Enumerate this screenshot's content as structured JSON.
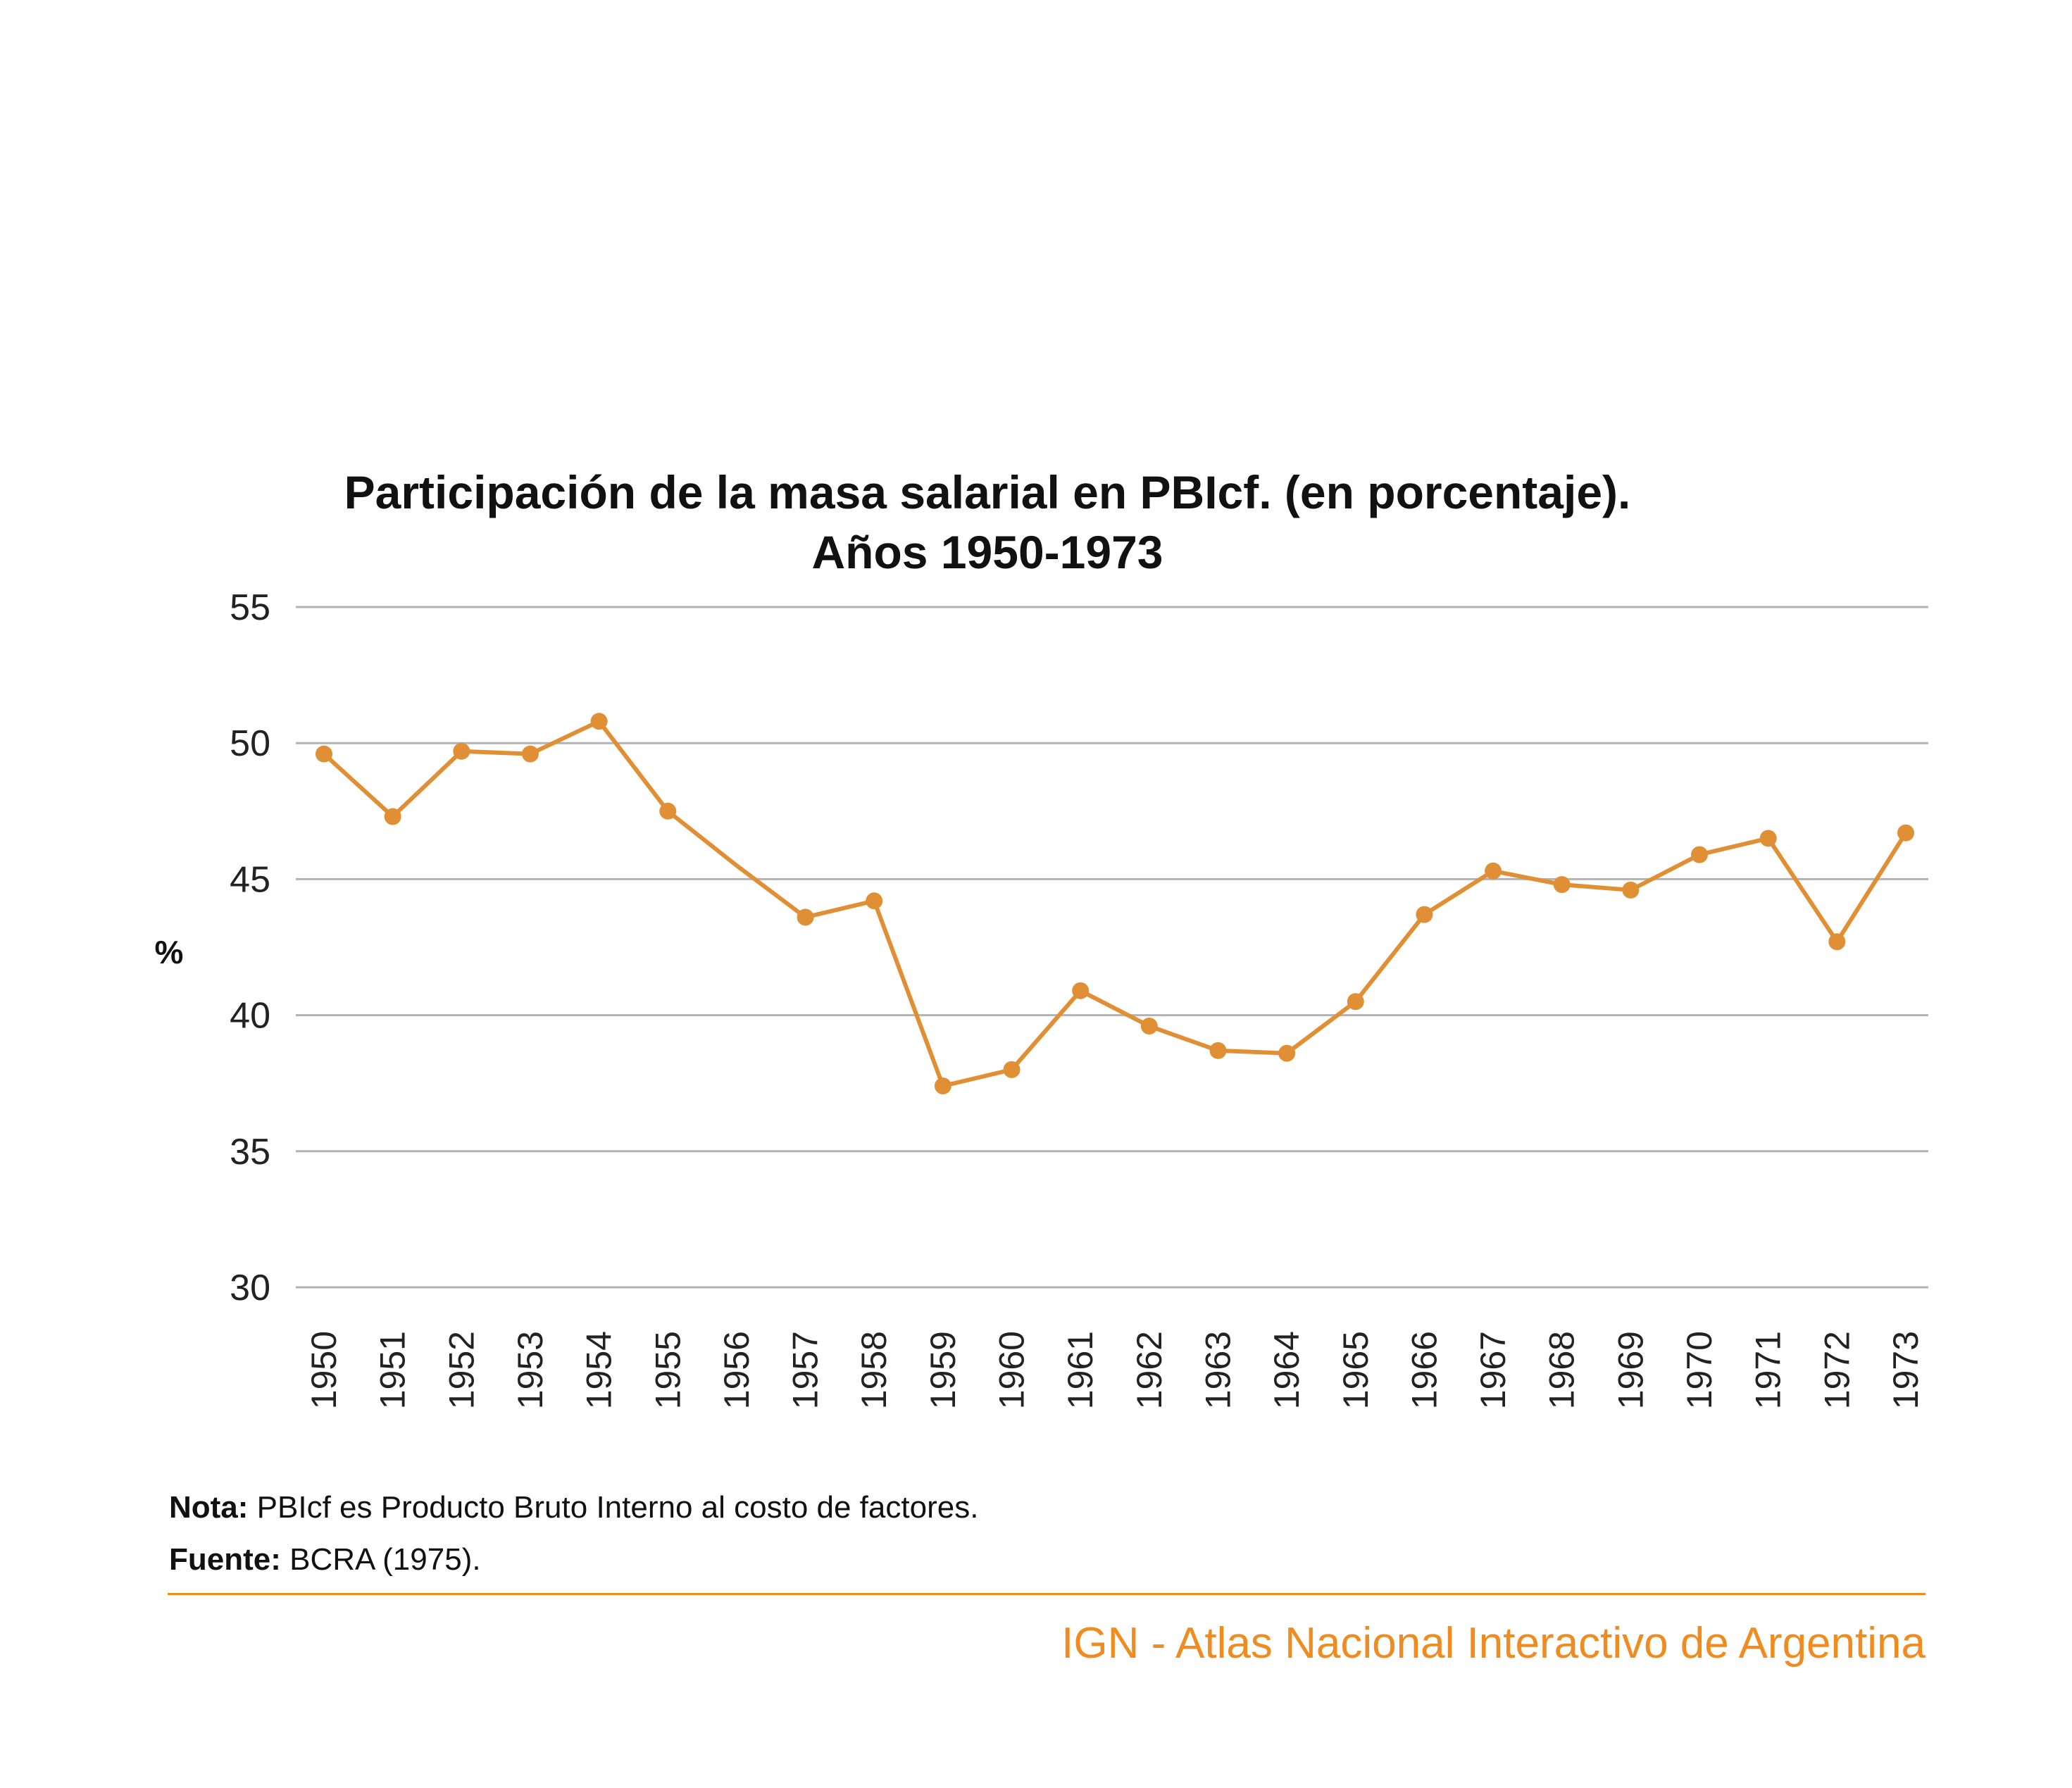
{
  "chart_data": {
    "type": "line",
    "title": "Participación de la masa salarial en PBIcf. (en porcentaje).",
    "subtitle": "Años 1950-1973",
    "xlabel": "",
    "ylabel": "%",
    "ylim": [
      30,
      55
    ],
    "yticks": [
      "30",
      "35",
      "40",
      "45",
      "50",
      "55"
    ],
    "grid": true,
    "categories": [
      "1950",
      "1951",
      "1952",
      "1953",
      "1954",
      "1955",
      "1956",
      "1957",
      "1958",
      "1959",
      "1960",
      "1961",
      "1962",
      "1963",
      "1964",
      "1965",
      "1966",
      "1967",
      "1968",
      "1969",
      "1970",
      "1971",
      "1972",
      "1973"
    ],
    "series": [
      {
        "values": [
          49.6,
          47.3,
          49.7,
          49.6,
          50.8,
          47.5,
          45.5,
          43.6,
          44.2,
          37.4,
          38.0,
          40.9,
          39.6,
          38.7,
          38.6,
          40.5,
          43.7,
          45.3,
          44.8,
          44.6,
          45.9,
          46.5,
          42.7,
          46.7
        ],
        "markers": [
          true,
          true,
          true,
          true,
          true,
          true,
          false,
          true,
          true,
          true,
          true,
          true,
          true,
          true,
          true,
          true,
          true,
          true,
          true,
          true,
          true,
          true,
          true,
          true
        ],
        "color": "#e08f34"
      }
    ]
  },
  "notes": {
    "nota_label": "Nota:",
    "nota_text": " PBIcf es Producto Bruto Interno al costo de factores.",
    "fuente_label": "Fuente:",
    "fuente_text": " BCRA (1975)."
  },
  "branding": {
    "text": "IGN - Atlas Nacional Interactivo de Argentina"
  },
  "colors": {
    "accent": "#e08f34",
    "brand": "#f08b1f",
    "rule": "#f08b1f",
    "grid": "#b3b3b3"
  }
}
